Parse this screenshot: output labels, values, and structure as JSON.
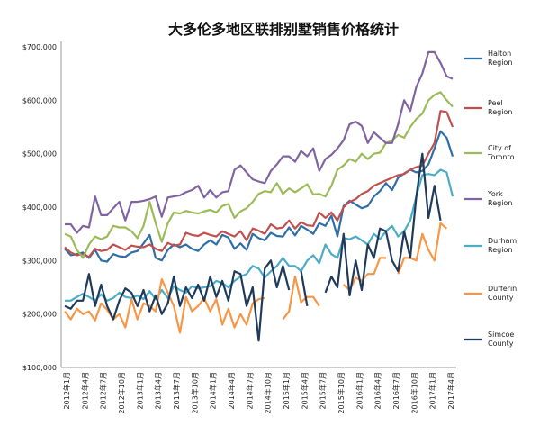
{
  "chart_data": {
    "type": "line",
    "title": "大多伦多地区联排别墅销售价格统计",
    "xlabel": "",
    "ylabel": "",
    "ylim": [
      100000,
      700000
    ],
    "yticks": [
      100000,
      200000,
      300000,
      400000,
      500000,
      600000,
      700000
    ],
    "ytick_labels": [
      "$100,000",
      "$200,000",
      "$300,000",
      "$400,000",
      "$500,000",
      "$600,000",
      "$700,000"
    ],
    "grid": false,
    "legend_position": "right",
    "x_tick_labels": [
      "2012年1月",
      "2012年4月",
      "2012年7月",
      "2012年10月",
      "2013年1月",
      "2013年4月",
      "2013年7月",
      "2013年10月",
      "2014年1月",
      "2014年4月",
      "2014年7月",
      "2014年10月",
      "2015年1月",
      "2015年4月",
      "2015年7月",
      "2015年10月",
      "2016年1月",
      "2016年4月",
      "2016年7月",
      "2016年10月",
      "2017年1月",
      "2017年4月"
    ],
    "n_points": 65,
    "series": [
      {
        "name": "Halton Region",
        "color": "#2F6EA6",
        "values": [
          322000,
          310000,
          312000,
          315000,
          305000,
          320000,
          300000,
          298000,
          312000,
          308000,
          307000,
          315000,
          318000,
          332000,
          348000,
          305000,
          300000,
          320000,
          330000,
          325000,
          330000,
          322000,
          318000,
          330000,
          338000,
          330000,
          348000,
          343000,
          322000,
          332000,
          320000,
          350000,
          342000,
          338000,
          352000,
          346000,
          345000,
          362000,
          347000,
          365000,
          358000,
          350000,
          370000,
          365000,
          384000,
          345000,
          402000,
          412000,
          405000,
          398000,
          402000,
          420000,
          430000,
          445000,
          432000,
          455000,
          463000,
          470000,
          465000,
          468000,
          480000,
          510000,
          542000,
          530000,
          495000
        ]
      },
      {
        "name": "Peel Region",
        "color": "#C0504D",
        "values": [
          325000,
          315000,
          310000,
          312000,
          307000,
          322000,
          318000,
          320000,
          330000,
          325000,
          320000,
          328000,
          326000,
          325000,
          330000,
          322000,
          318000,
          333000,
          328000,
          330000,
          352000,
          348000,
          346000,
          352000,
          348000,
          345000,
          355000,
          350000,
          345000,
          355000,
          338000,
          360000,
          356000,
          350000,
          368000,
          360000,
          362000,
          375000,
          360000,
          372000,
          366000,
          365000,
          390000,
          380000,
          390000,
          375000,
          400000,
          410000,
          415000,
          425000,
          430000,
          440000,
          445000,
          450000,
          455000,
          460000,
          462000,
          470000,
          475000,
          478000,
          500000,
          520000,
          580000,
          578000,
          550000
        ]
      },
      {
        "name": "City of Toronto",
        "color": "#9BBB59",
        "values": [
          350000,
          345000,
          320000,
          305000,
          330000,
          345000,
          340000,
          345000,
          365000,
          362000,
          362000,
          355000,
          342000,
          365000,
          410000,
          370000,
          335000,
          370000,
          390000,
          388000,
          393000,
          390000,
          388000,
          392000,
          395000,
          390000,
          402000,
          406000,
          380000,
          392000,
          398000,
          410000,
          425000,
          430000,
          428000,
          445000,
          425000,
          435000,
          428000,
          435000,
          443000,
          424000,
          425000,
          420000,
          440000,
          470000,
          478000,
          490000,
          485000,
          500000,
          490000,
          500000,
          502000,
          520000,
          525000,
          535000,
          530000,
          550000,
          565000,
          575000,
          600000,
          610000,
          615000,
          600000,
          588000
        ]
      },
      {
        "name": "York Region",
        "color": "#8064A2",
        "values": [
          368000,
          368000,
          352000,
          365000,
          362000,
          420000,
          385000,
          385000,
          398000,
          410000,
          375000,
          410000,
          410000,
          412000,
          415000,
          420000,
          382000,
          418000,
          420000,
          422000,
          428000,
          432000,
          440000,
          418000,
          432000,
          418000,
          428000,
          430000,
          470000,
          478000,
          465000,
          452000,
          448000,
          445000,
          468000,
          480000,
          495000,
          495000,
          485000,
          505000,
          495000,
          510000,
          468000,
          490000,
          498000,
          510000,
          525000,
          555000,
          560000,
          552000,
          520000,
          540000,
          530000,
          520000,
          520000,
          555000,
          600000,
          580000,
          625000,
          650000,
          690000,
          690000,
          670000,
          645000,
          640000
        ]
      },
      {
        "name": "Durham Region",
        "color": "#4BACC6",
        "values": [
          225000,
          225000,
          232000,
          238000,
          232000,
          225000,
          237000,
          225000,
          230000,
          240000,
          232000,
          230000,
          235000,
          228000,
          243000,
          228000,
          245000,
          230000,
          252000,
          245000,
          240000,
          252000,
          248000,
          250000,
          252000,
          262000,
          258000,
          250000,
          262000,
          270000,
          275000,
          290000,
          285000,
          268000,
          280000,
          290000,
          305000,
          290000,
          290000,
          280000,
          300000,
          310000,
          295000,
          330000,
          312000,
          305000,
          342000,
          340000,
          345000,
          338000,
          330000,
          350000,
          340000,
          355000,
          365000,
          345000,
          355000,
          375000,
          420000,
          460000,
          462000,
          460000,
          470000,
          465000,
          420000
        ]
      },
      {
        "name": "Dufferin County",
        "color": "#F79646",
        "values": [
          205000,
          190000,
          210000,
          200000,
          205000,
          188000,
          220000,
          208000,
          190000,
          200000,
          175000,
          228000,
          190000,
          220000,
          215000,
          205000,
          265000,
          240000,
          215000,
          165000,
          232000,
          205000,
          215000,
          230000,
          205000,
          228000,
          180000,
          210000,
          175000,
          200000,
          180000,
          220000,
          228000,
          230000,
          null,
          null,
          190000,
          205000,
          270000,
          222000,
          232000,
          232000,
          215000,
          null,
          null,
          null,
          255000,
          245000,
          268000,
          262000,
          275000,
          275000,
          305000,
          305000,
          null,
          275000,
          305000,
          305000,
          300000,
          350000,
          320000,
          300000,
          370000,
          360000,
          null
        ]
      },
      {
        "name": "Simcoe County",
        "color": "#1F3A5A",
        "values": [
          215000,
          210000,
          225000,
          225000,
          275000,
          215000,
          255000,
          215000,
          190000,
          225000,
          248000,
          240000,
          215000,
          245000,
          205000,
          235000,
          200000,
          220000,
          270000,
          215000,
          250000,
          230000,
          255000,
          225000,
          270000,
          232000,
          262000,
          225000,
          280000,
          275000,
          215000,
          250000,
          150000,
          285000,
          300000,
          250000,
          290000,
          245000,
          null,
          280000,
          215000,
          null,
          null,
          240000,
          270000,
          250000,
          350000,
          235000,
          300000,
          245000,
          330000,
          305000,
          360000,
          355000,
          300000,
          280000,
          355000,
          305000,
          420000,
          500000,
          380000,
          440000,
          375000,
          null,
          null
        ]
      }
    ]
  }
}
